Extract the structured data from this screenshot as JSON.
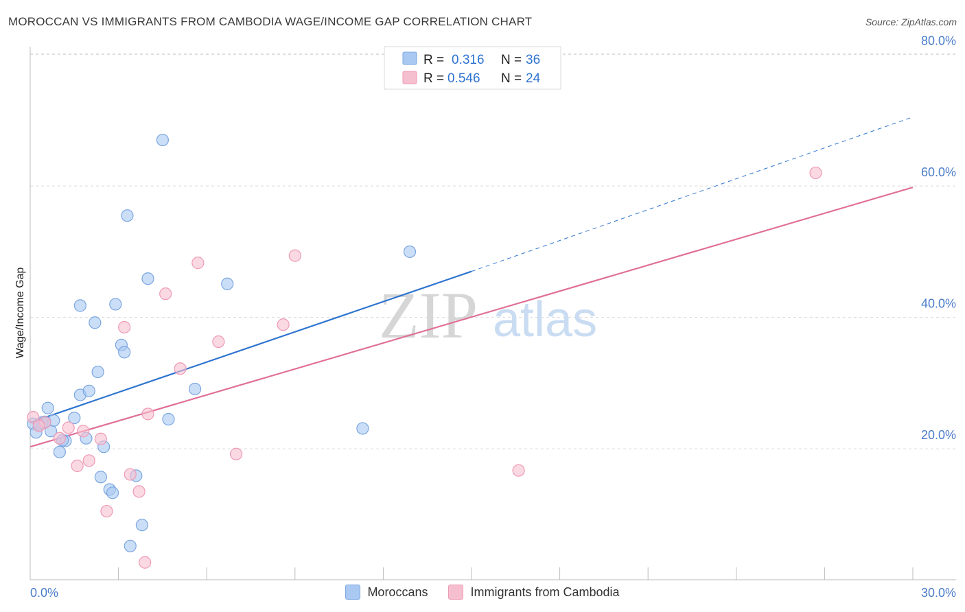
{
  "header": {
    "title": "MOROCCAN VS IMMIGRANTS FROM CAMBODIA WAGE/INCOME GAP CORRELATION CHART",
    "source": "Source: ZipAtlas.com"
  },
  "watermark": {
    "zip": "ZIP",
    "atlas": "atlas"
  },
  "colors": {
    "blue_fill": "#a9c8f2",
    "blue_stroke": "#7aa6e0",
    "blue_line": "#2e74cf",
    "pink_fill": "#f6bfd0",
    "pink_stroke": "#ee9ab5",
    "pink_line": "#e07098",
    "tick": "#4a7cc9",
    "grid": "#d9d9d9"
  },
  "legend_stats": [
    {
      "r_label": "R =",
      "r_value": "0.316",
      "n_label": "N =",
      "n_value": "36"
    },
    {
      "r_label": "R =",
      "r_value": "0.546",
      "n_label": "N =",
      "n_value": "24"
    }
  ],
  "bottom_legend": [
    "Moroccans",
    "Immigrants from Cambodia"
  ],
  "chart_data": {
    "type": "scatter",
    "title": "MOROCCAN VS IMMIGRANTS FROM CAMBODIA WAGE/INCOME GAP CORRELATION CHART",
    "xlabel": "",
    "ylabel": "Wage/Income Gap",
    "xlim": [
      0,
      30
    ],
    "ylim": [
      0,
      80
    ],
    "x_tick_labels": [
      "0.0%",
      "30.0%"
    ],
    "y_ticks": [
      20,
      40,
      60,
      80
    ],
    "y_tick_labels": [
      "20.0%",
      "40.0%",
      "60.0%",
      "80.0%"
    ],
    "series": [
      {
        "name": "Moroccans",
        "color": "blue",
        "points": [
          [
            0.1,
            23.8
          ],
          [
            0.2,
            22.5
          ],
          [
            0.4,
            24.0
          ],
          [
            0.6,
            26.2
          ],
          [
            0.7,
            22.7
          ],
          [
            0.8,
            24.3
          ],
          [
            1.0,
            19.5
          ],
          [
            1.2,
            21.2
          ],
          [
            1.5,
            24.7
          ],
          [
            1.7,
            28.2
          ],
          [
            1.7,
            41.8
          ],
          [
            1.9,
            21.6
          ],
          [
            2.0,
            28.8
          ],
          [
            2.2,
            39.2
          ],
          [
            2.3,
            31.7
          ],
          [
            2.4,
            15.7
          ],
          [
            2.5,
            20.3
          ],
          [
            2.7,
            13.8
          ],
          [
            2.8,
            13.3
          ],
          [
            2.9,
            42.0
          ],
          [
            3.1,
            35.8
          ],
          [
            3.2,
            34.7
          ],
          [
            3.3,
            55.5
          ],
          [
            3.4,
            5.2
          ],
          [
            3.6,
            15.9
          ],
          [
            3.8,
            8.4
          ],
          [
            4.0,
            45.9
          ],
          [
            4.5,
            67.0
          ],
          [
            4.7,
            24.5
          ],
          [
            5.6,
            29.1
          ],
          [
            6.7,
            45.1
          ],
          [
            11.3,
            23.1
          ],
          [
            12.9,
            50.0
          ],
          [
            0.3,
            23.7
          ],
          [
            1.1,
            21.3
          ],
          [
            0.5,
            24.1
          ]
        ],
        "trend": {
          "x0": 0,
          "y0": 24.0,
          "x1": 15.0,
          "y1": 47.0,
          "dash_to_x": 30,
          "dash_to_y": 70.5
        }
      },
      {
        "name": "Immigrants from Cambodia",
        "color": "pink",
        "points": [
          [
            0.1,
            24.8
          ],
          [
            0.5,
            24.0
          ],
          [
            1.0,
            21.6
          ],
          [
            1.3,
            23.2
          ],
          [
            1.6,
            17.4
          ],
          [
            1.8,
            22.7
          ],
          [
            2.0,
            18.2
          ],
          [
            2.4,
            21.5
          ],
          [
            2.6,
            10.5
          ],
          [
            3.2,
            38.5
          ],
          [
            3.4,
            16.1
          ],
          [
            3.7,
            13.5
          ],
          [
            3.9,
            2.7
          ],
          [
            4.0,
            25.3
          ],
          [
            4.6,
            43.6
          ],
          [
            5.1,
            32.2
          ],
          [
            5.7,
            48.3
          ],
          [
            6.4,
            36.3
          ],
          [
            7.0,
            19.2
          ],
          [
            8.6,
            38.9
          ],
          [
            9.0,
            49.4
          ],
          [
            16.6,
            16.7
          ],
          [
            26.7,
            62.0
          ],
          [
            0.3,
            23.5
          ]
        ],
        "trend": {
          "x0": 0,
          "y0": 20.3,
          "x1": 30,
          "y1": 59.8
        }
      }
    ]
  }
}
